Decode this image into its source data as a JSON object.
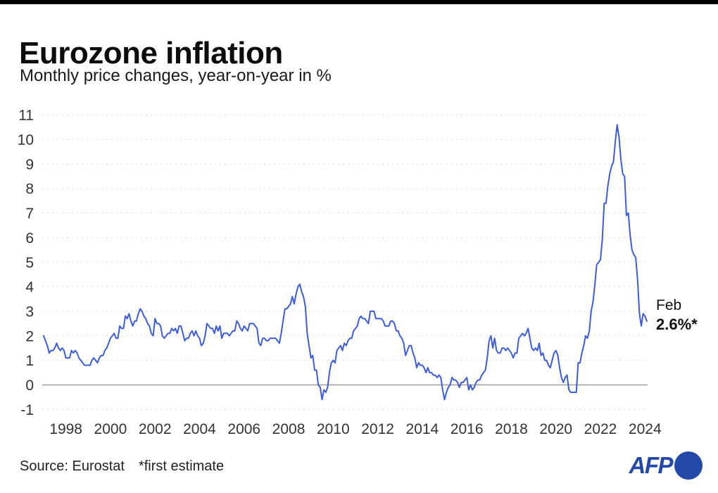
{
  "colors": {
    "line": "#3d5cdb",
    "grid": "#d9d9d9",
    "zero_line": "#9e9e9e",
    "afp_blue": "#2248a8",
    "top_bar": "#000000"
  },
  "header": {
    "title": "Eurozone inflation",
    "subtitle": "Monthly price changes, year-on-year in %"
  },
  "footer": {
    "source_label": "Source: Eurostat",
    "estimate_note": "*first estimate",
    "logo_text": "AFP"
  },
  "chart_data": {
    "type": "line",
    "title": "Eurozone inflation",
    "subtitle": "Monthly price changes, year-on-year in %",
    "unit": "%",
    "xlabel": "",
    "ylabel": "",
    "ylim": [
      -1,
      11
    ],
    "yticks": [
      11,
      10,
      9,
      8,
      7,
      6,
      5,
      4,
      3,
      2,
      1,
      0,
      -1
    ],
    "xticks": [
      1998,
      2000,
      2002,
      2004,
      2006,
      2008,
      2010,
      2012,
      2014,
      2016,
      2018,
      2020,
      2022,
      2024
    ],
    "grid": {
      "horizontal": "dotted",
      "vertical": "none",
      "zero_line": "solid"
    },
    "legend": "none",
    "last_point_label": {
      "label": "Feb",
      "value": "2.6%*"
    },
    "series": [
      {
        "name": "Eurozone inflation, year-on-year %",
        "frequency": "monthly",
        "start": "1997-01",
        "end": "2024-02",
        "values_by_year": {
          "1997": [
            2.0,
            1.8,
            1.6,
            1.3,
            1.4,
            1.4,
            1.5,
            1.7,
            1.5,
            1.4,
            1.5,
            1.4
          ],
          "1998": [
            1.1,
            1.1,
            1.1,
            1.4,
            1.3,
            1.4,
            1.3,
            1.1,
            1.0,
            0.9,
            0.8,
            0.8
          ],
          "1999": [
            0.8,
            0.8,
            1.0,
            1.1,
            1.0,
            0.9,
            1.1,
            1.2,
            1.2,
            1.4,
            1.5,
            1.7
          ],
          "2000": [
            1.9,
            2.0,
            2.1,
            1.9,
            1.9,
            2.4,
            2.3,
            2.3,
            2.8,
            2.7,
            2.9,
            2.6
          ],
          "2001": [
            2.4,
            2.6,
            2.6,
            2.9,
            3.1,
            3.0,
            2.8,
            2.7,
            2.5,
            2.4,
            2.1,
            2.0
          ],
          "2002": [
            2.7,
            2.5,
            2.5,
            2.4,
            2.0,
            1.9,
            2.0,
            2.1,
            2.1,
            2.3,
            2.2,
            2.3
          ],
          "2003": [
            2.1,
            2.4,
            2.4,
            2.1,
            1.8,
            1.9,
            1.9,
            2.1,
            2.2,
            2.0,
            2.2,
            2.0
          ],
          "2004": [
            1.9,
            1.6,
            1.7,
            2.0,
            2.5,
            2.4,
            2.3,
            2.3,
            2.1,
            2.4,
            2.2,
            2.4
          ],
          "2005": [
            1.9,
            2.1,
            2.1,
            2.1,
            2.0,
            2.1,
            2.2,
            2.2,
            2.6,
            2.5,
            2.3,
            2.2
          ],
          "2006": [
            2.4,
            2.3,
            2.2,
            2.5,
            2.5,
            2.5,
            2.4,
            2.3,
            1.7,
            1.6,
            1.9,
            1.9
          ],
          "2007": [
            1.8,
            1.8,
            1.9,
            1.9,
            1.9,
            1.9,
            1.8,
            1.7,
            2.1,
            2.6,
            3.1,
            3.1
          ],
          "2008": [
            3.2,
            3.3,
            3.6,
            3.3,
            3.7,
            4.0,
            4.1,
            3.8,
            3.6,
            3.2,
            2.1,
            1.6
          ],
          "2009": [
            1.1,
            1.2,
            0.6,
            0.6,
            0.0,
            -0.1,
            -0.6,
            -0.2,
            -0.3,
            -0.1,
            0.5,
            0.9
          ],
          "2010": [
            1.0,
            0.9,
            1.4,
            1.5,
            1.6,
            1.4,
            1.7,
            1.6,
            1.8,
            1.9,
            1.9,
            2.2
          ],
          "2011": [
            2.3,
            2.4,
            2.7,
            2.8,
            2.7,
            2.7,
            2.6,
            2.5,
            3.0,
            3.0,
            3.0,
            2.7
          ],
          "2012": [
            2.7,
            2.7,
            2.7,
            2.6,
            2.4,
            2.4,
            2.4,
            2.6,
            2.6,
            2.5,
            2.2,
            2.2
          ],
          "2013": [
            2.0,
            1.9,
            1.7,
            1.2,
            1.4,
            1.6,
            1.6,
            1.3,
            1.1,
            0.7,
            0.9,
            0.8
          ],
          "2014": [
            0.8,
            0.7,
            0.5,
            0.7,
            0.5,
            0.5,
            0.4,
            0.4,
            0.3,
            0.4,
            0.3,
            -0.2
          ],
          "2015": [
            -0.6,
            -0.3,
            -0.1,
            0.0,
            0.3,
            0.2,
            0.2,
            0.1,
            -0.1,
            0.1,
            0.1,
            0.2
          ],
          "2016": [
            0.3,
            -0.2,
            0.0,
            -0.2,
            -0.1,
            0.1,
            0.2,
            0.2,
            0.4,
            0.5,
            0.6,
            1.1
          ],
          "2017": [
            1.8,
            2.0,
            1.5,
            1.9,
            1.4,
            1.3,
            1.3,
            1.5,
            1.5,
            1.4,
            1.5,
            1.4
          ],
          "2018": [
            1.3,
            1.1,
            1.3,
            1.3,
            1.9,
            2.0,
            2.1,
            2.0,
            2.1,
            2.3,
            1.9,
            1.5
          ],
          "2019": [
            1.4,
            1.5,
            1.4,
            1.7,
            1.2,
            1.3,
            1.0,
            1.0,
            0.8,
            0.7,
            1.0,
            1.3
          ],
          "2020": [
            1.4,
            1.2,
            0.7,
            0.3,
            0.1,
            0.3,
            0.4,
            -0.2,
            -0.3,
            -0.3,
            -0.3,
            -0.3
          ],
          "2021": [
            0.9,
            0.9,
            1.3,
            1.6,
            2.0,
            1.9,
            2.2,
            3.0,
            3.4,
            4.1,
            4.9,
            5.0
          ],
          "2022": [
            5.1,
            5.9,
            7.4,
            7.4,
            8.1,
            8.6,
            8.9,
            9.1,
            9.9,
            10.6,
            10.1,
            9.2
          ],
          "2023": [
            8.6,
            8.5,
            6.9,
            7.0,
            6.1,
            5.5,
            5.3,
            5.2,
            4.3,
            2.9,
            2.4,
            2.9
          ],
          "2024": [
            2.8,
            2.6
          ]
        }
      }
    ]
  }
}
